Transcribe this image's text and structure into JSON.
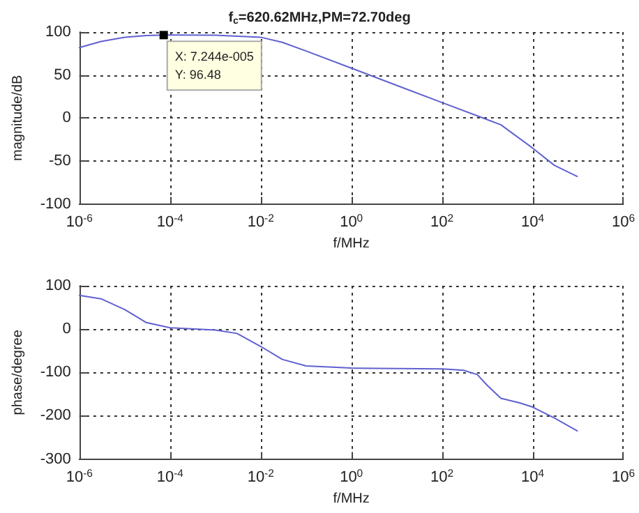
{
  "chart_data": [
    {
      "type": "line",
      "title": "f$_{c}$=620.62MHz,PM=72.70deg",
      "xlabel": "f/MHz",
      "ylabel": "magnitude/dB",
      "log": "x",
      "grid": true,
      "marker": "none",
      "line_style": "solid",
      "xlim": [
        1e-06,
        1000000.0
      ],
      "xticks": [
        {
          "value": 1e-06,
          "label": "10$^{-6}$"
        },
        {
          "value": 0.0001,
          "label": "10$^{-4}$"
        },
        {
          "value": 0.01,
          "label": "10$^{-2}$"
        },
        {
          "value": 1,
          "label": "10$^{0}$"
        },
        {
          "value": 100,
          "label": "10$^{2}$"
        },
        {
          "value": 10000,
          "label": "10$^{4}$"
        },
        {
          "value": 1000000,
          "label": "10$^{6}$"
        }
      ],
      "ylim": [
        -100,
        100
      ],
      "yticks": [
        -100,
        -50,
        0,
        50,
        100
      ],
      "annotations": [
        {
          "text": "X: 7.244e-005\nY: 96.48",
          "x": 7.244e-05,
          "y": 96.48
        }
      ],
      "series": [
        {
          "color": "#6060d0",
          "x": [
            1e-06,
            3e-06,
            1e-05,
            3e-05,
            7.244e-05,
            0.001,
            0.01,
            0.03,
            0.1,
            1,
            10,
            100,
            800,
            2000,
            10000,
            30000,
            96000
          ],
          "values": [
            82,
            89,
            94,
            96,
            96.48,
            96.4,
            94,
            88,
            78,
            58,
            38,
            18,
            0,
            -8,
            -35,
            -55,
            -68
          ]
        }
      ]
    },
    {
      "type": "line",
      "xlabel": "f/MHz",
      "ylabel": "phase/degree",
      "log": "x",
      "grid": true,
      "marker": "none",
      "line_style": "solid",
      "xlim": [
        1e-06,
        1000000.0
      ],
      "xticks": [
        {
          "value": 1e-06,
          "label": "10$^{-6}$"
        },
        {
          "value": 0.0001,
          "label": "10$^{-4}$"
        },
        {
          "value": 0.01,
          "label": "10$^{-2}$"
        },
        {
          "value": 1,
          "label": "10$^{0}$"
        },
        {
          "value": 100,
          "label": "10$^{2}$"
        },
        {
          "value": 10000,
          "label": "10$^{4}$"
        },
        {
          "value": 1000000,
          "label": "10$^{6}$"
        }
      ],
      "ylim": [
        -300,
        100
      ],
      "yticks": [
        -300,
        -200,
        -100,
        0,
        100
      ],
      "series": [
        {
          "color": "#6060d0",
          "x": [
            1e-06,
            3e-06,
            1e-05,
            3e-05,
            0.0001,
            0.001,
            0.003,
            0.01,
            0.03,
            0.1,
            1,
            100,
            300,
            600,
            1000,
            2000,
            5000,
            10000,
            30000,
            96000
          ],
          "values": [
            78,
            70,
            45,
            15,
            3,
            -2,
            -10,
            -40,
            -70,
            -85,
            -90,
            -92,
            -95,
            -105,
            -130,
            -160,
            -170,
            -180,
            -205,
            -235
          ]
        }
      ]
    }
  ]
}
